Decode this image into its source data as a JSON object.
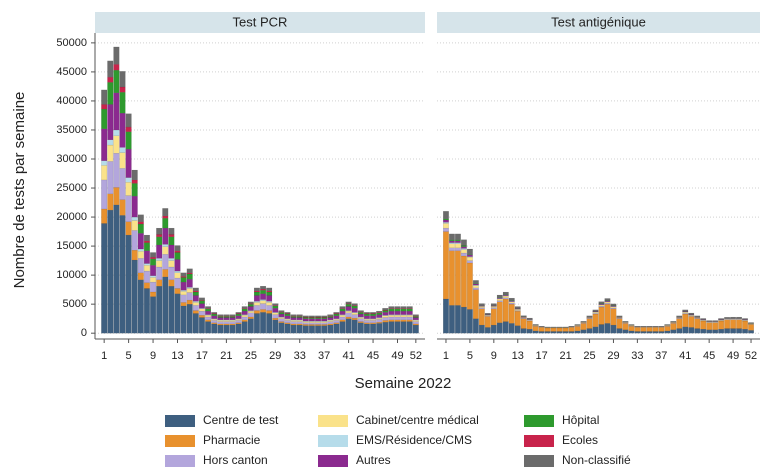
{
  "chart_data": {
    "type": "bar",
    "stacked": true,
    "panels": [
      "Test PCR",
      "Test antigénique"
    ],
    "x_label": "Semaine 2022",
    "y_label": "Nombre de tests par semaine",
    "x": [
      1,
      2,
      3,
      4,
      5,
      6,
      7,
      8,
      9,
      10,
      11,
      12,
      13,
      14,
      15,
      16,
      17,
      18,
      19,
      20,
      21,
      22,
      23,
      24,
      25,
      26,
      27,
      28,
      29,
      30,
      31,
      32,
      33,
      34,
      35,
      36,
      37,
      38,
      39,
      40,
      41,
      42,
      43,
      44,
      45,
      46,
      47,
      48,
      49,
      50,
      51,
      52
    ],
    "xlim": [
      -0.5,
      53.5
    ],
    "xticks": [
      1,
      5,
      9,
      13,
      17,
      21,
      25,
      29,
      33,
      37,
      41,
      45,
      49,
      52
    ],
    "ylim": [
      -1000,
      51700
    ],
    "yticks": [
      0,
      5000,
      10000,
      15000,
      20000,
      25000,
      30000,
      35000,
      40000,
      45000,
      50000
    ],
    "grid": true,
    "series": [
      {
        "name": "Centre de test",
        "color": "#3e5f80",
        "values": [
          [
            18900,
            21200,
            22100,
            20300,
            16900,
            12600,
            9200,
            7700,
            6300,
            8100,
            9700,
            8100,
            6800,
            4700,
            5000,
            3400,
            2700,
            2000,
            1600,
            1400,
            1400,
            1400,
            1600,
            2000,
            2500,
            3400,
            3600,
            3400,
            2300,
            1800,
            1600,
            1400,
            1400,
            1300,
            1300,
            1300,
            1300,
            1400,
            1600,
            2000,
            2500,
            2300,
            1800,
            1600,
            1600,
            1700,
            1900,
            2000,
            2000,
            2000,
            2000,
            1400
          ],
          [
            5900,
            4800,
            4800,
            4500,
            4100,
            2500,
            1400,
            1000,
            1400,
            1800,
            2000,
            1700,
            1300,
            800,
            700,
            400,
            300,
            300,
            300,
            300,
            300,
            300,
            400,
            600,
            800,
            1100,
            1500,
            1700,
            1400,
            800,
            600,
            400,
            300,
            300,
            300,
            300,
            300,
            400,
            600,
            800,
            1100,
            1000,
            800,
            700,
            600,
            600,
            700,
            800,
            800,
            800,
            700,
            500
          ]
        ]
      },
      {
        "name": "Pharmacie",
        "color": "#e8912e",
        "values": [
          [
            2500,
            2800,
            3000,
            2700,
            2300,
            1700,
            1200,
            1000,
            800,
            1100,
            1300,
            1100,
            900,
            600,
            700,
            500,
            400,
            300,
            200,
            200,
            200,
            200,
            200,
            300,
            300,
            500,
            500,
            500,
            300,
            200,
            200,
            200,
            200,
            200,
            200,
            200,
            200,
            200,
            200,
            300,
            300,
            300,
            200,
            200,
            200,
            200,
            300,
            300,
            300,
            300,
            300,
            200
          ],
          [
            11600,
            9400,
            9400,
            8800,
            8000,
            5000,
            2800,
            1900,
            2800,
            3600,
            3900,
            3300,
            2500,
            1700,
            1400,
            800,
            700,
            600,
            600,
            600,
            600,
            700,
            800,
            1100,
            1700,
            2200,
            3000,
            3300,
            2800,
            1700,
            1100,
            800,
            700,
            700,
            700,
            700,
            700,
            800,
            1100,
            1700,
            2200,
            1900,
            1700,
            1400,
            1200,
            1200,
            1400,
            1500,
            1500,
            1500,
            1400,
            1000
          ]
        ]
      },
      {
        "name": "Hors canton",
        "color": "#b3a6dc",
        "values": [
          [
            5000,
            5600,
            5900,
            5400,
            4500,
            3400,
            2500,
            2000,
            1700,
            2200,
            2600,
            2200,
            1800,
            1300,
            1300,
            900,
            700,
            500,
            400,
            400,
            400,
            400,
            400,
            500,
            700,
            900,
            1000,
            900,
            600,
            500,
            400,
            400,
            400,
            300,
            300,
            300,
            300,
            400,
            400,
            500,
            700,
            600,
            500,
            400,
            400,
            500,
            500,
            500,
            500,
            500,
            500,
            400
          ],
          [
            600,
            500,
            500,
            500,
            400,
            300,
            200,
            100,
            200,
            200,
            200,
            200,
            100,
            100,
            100,
            50,
            40,
            30,
            30,
            30,
            30,
            40,
            50,
            60,
            90,
            120,
            170,
            180,
            150,
            90,
            60,
            50,
            40,
            40,
            40,
            40,
            40,
            50,
            60,
            90,
            120,
            110,
            90,
            80,
            70,
            70,
            80,
            80,
            80,
            80,
            80,
            50
          ]
        ]
      },
      {
        "name": "Cabinet/centre médical",
        "color": "#fae28a",
        "values": [
          [
            2500,
            2800,
            3000,
            2700,
            2300,
            1700,
            1200,
            1000,
            800,
            1100,
            1300,
            1100,
            900,
            600,
            700,
            500,
            400,
            300,
            200,
            200,
            200,
            200,
            200,
            300,
            300,
            500,
            500,
            500,
            300,
            200,
            200,
            200,
            200,
            200,
            200,
            200,
            200,
            200,
            200,
            300,
            300,
            300,
            200,
            200,
            200,
            200,
            300,
            300,
            300,
            300,
            300,
            200
          ],
          [
            800,
            700,
            700,
            600,
            600,
            400,
            200,
            100,
            200,
            300,
            300,
            200,
            200,
            100,
            100,
            100,
            50,
            50,
            50,
            50,
            50,
            50,
            100,
            100,
            100,
            200,
            200,
            200,
            200,
            100,
            100,
            100,
            50,
            50,
            50,
            50,
            50,
            100,
            100,
            100,
            200,
            100,
            100,
            100,
            100,
            100,
            100,
            100,
            100,
            100,
            100,
            100
          ]
        ]
      },
      {
        "name": "EMS/Résidence/CMS",
        "color": "#b6dcea",
        "values": [
          [
            800,
            900,
            1000,
            900,
            800,
            600,
            400,
            300,
            300,
            400,
            400,
            400,
            300,
            200,
            200,
            200,
            100,
            100,
            100,
            100,
            100,
            100,
            100,
            100,
            100,
            200,
            200,
            200,
            100,
            100,
            100,
            100,
            100,
            100,
            100,
            100,
            100,
            100,
            100,
            100,
            100,
            100,
            100,
            100,
            100,
            100,
            100,
            100,
            100,
            100,
            100,
            100
          ],
          [
            200,
            200,
            200,
            200,
            100,
            100,
            50,
            40,
            50,
            70,
            70,
            60,
            50,
            30,
            30,
            20,
            10,
            10,
            10,
            10,
            10,
            10,
            20,
            20,
            30,
            40,
            60,
            60,
            50,
            30,
            20,
            20,
            10,
            10,
            10,
            10,
            10,
            20,
            20,
            30,
            40,
            40,
            30,
            30,
            20,
            20,
            30,
            30,
            30,
            30,
            30,
            20
          ]
        ]
      },
      {
        "name": "Autres",
        "color": "#8b2a8f",
        "values": [
          [
            5500,
            6100,
            6400,
            5900,
            4900,
            3600,
            2700,
            2200,
            1800,
            2300,
            2800,
            2300,
            2000,
            1400,
            1400,
            1000,
            800,
            600,
            500,
            400,
            400,
            400,
            500,
            600,
            700,
            1000,
            1000,
            1000,
            700,
            500,
            500,
            400,
            400,
            400,
            400,
            400,
            400,
            400,
            500,
            600,
            700,
            700,
            500,
            500,
            500,
            500,
            500,
            600,
            600,
            600,
            600,
            400
          ],
          [
            400,
            300,
            300,
            300,
            300,
            200,
            100,
            70,
            100,
            130,
            140,
            120,
            90,
            60,
            50,
            30,
            20,
            20,
            20,
            20,
            20,
            20,
            30,
            40,
            60,
            80,
            110,
            120,
            100,
            60,
            40,
            30,
            20,
            20,
            20,
            20,
            20,
            30,
            40,
            60,
            80,
            70,
            60,
            50,
            40,
            40,
            50,
            50,
            60,
            60,
            50,
            40
          ]
        ]
      },
      {
        "name": "Hôpital",
        "color": "#2e9a2e",
        "values": [
          [
            3400,
            3800,
            3900,
            3600,
            3000,
            2200,
            1600,
            1400,
            1100,
            1400,
            1700,
            1400,
            1200,
            800,
            900,
            600,
            500,
            400,
            300,
            200,
            200,
            200,
            300,
            400,
            400,
            600,
            600,
            600,
            400,
            300,
            300,
            200,
            200,
            200,
            200,
            200,
            200,
            200,
            300,
            400,
            400,
            400,
            300,
            300,
            300,
            300,
            300,
            400,
            400,
            400,
            400,
            200
          ],
          [
            200,
            200,
            200,
            200,
            100,
            100,
            50,
            40,
            50,
            70,
            70,
            60,
            50,
            30,
            30,
            20,
            10,
            10,
            10,
            10,
            10,
            10,
            20,
            20,
            30,
            40,
            60,
            60,
            50,
            30,
            20,
            20,
            10,
            10,
            10,
            10,
            10,
            20,
            20,
            30,
            40,
            40,
            30,
            30,
            20,
            20,
            30,
            30,
            30,
            30,
            30,
            20
          ]
        ]
      },
      {
        "name": "Ecoles",
        "color": "#c8234b",
        "values": [
          [
            800,
            900,
            1000,
            900,
            800,
            600,
            400,
            300,
            300,
            400,
            400,
            400,
            300,
            200,
            200,
            200,
            100,
            100,
            100,
            100,
            100,
            100,
            100,
            100,
            100,
            200,
            200,
            200,
            100,
            100,
            100,
            100,
            100,
            100,
            100,
            100,
            100,
            100,
            100,
            100,
            100,
            100,
            100,
            100,
            100,
            100,
            100,
            100,
            100,
            100,
            100,
            100
          ],
          [
            0,
            0,
            0,
            0,
            0,
            0,
            0,
            0,
            0,
            0,
            0,
            0,
            0,
            0,
            0,
            0,
            0,
            0,
            0,
            0,
            0,
            0,
            0,
            0,
            0,
            0,
            0,
            0,
            0,
            0,
            0,
            0,
            0,
            0,
            0,
            0,
            0,
            0,
            0,
            0,
            0,
            0,
            0,
            0,
            0,
            0,
            0,
            0,
            0,
            0,
            0,
            0
          ]
        ]
      },
      {
        "name": "Non-classifié",
        "color": "#6b6b6b",
        "values": [
          [
            2500,
            2800,
            3000,
            2700,
            2300,
            1700,
            1200,
            1000,
            800,
            1100,
            1300,
            1100,
            900,
            600,
            700,
            500,
            400,
            300,
            200,
            200,
            200,
            200,
            200,
            300,
            300,
            500,
            500,
            500,
            300,
            200,
            200,
            200,
            200,
            200,
            200,
            200,
            200,
            200,
            200,
            300,
            300,
            300,
            200,
            200,
            200,
            200,
            300,
            300,
            300,
            300,
            300,
            200
          ],
          [
            1300,
            1000,
            1000,
            1000,
            900,
            500,
            300,
            200,
            300,
            400,
            400,
            400,
            300,
            200,
            200,
            100,
            70,
            60,
            60,
            60,
            60,
            70,
            90,
            120,
            180,
            240,
            330,
            360,
            300,
            180,
            120,
            90,
            70,
            70,
            70,
            70,
            70,
            90,
            120,
            180,
            240,
            210,
            180,
            150,
            130,
            130,
            150,
            160,
            170,
            170,
            150,
            110
          ]
        ]
      }
    ]
  }
}
